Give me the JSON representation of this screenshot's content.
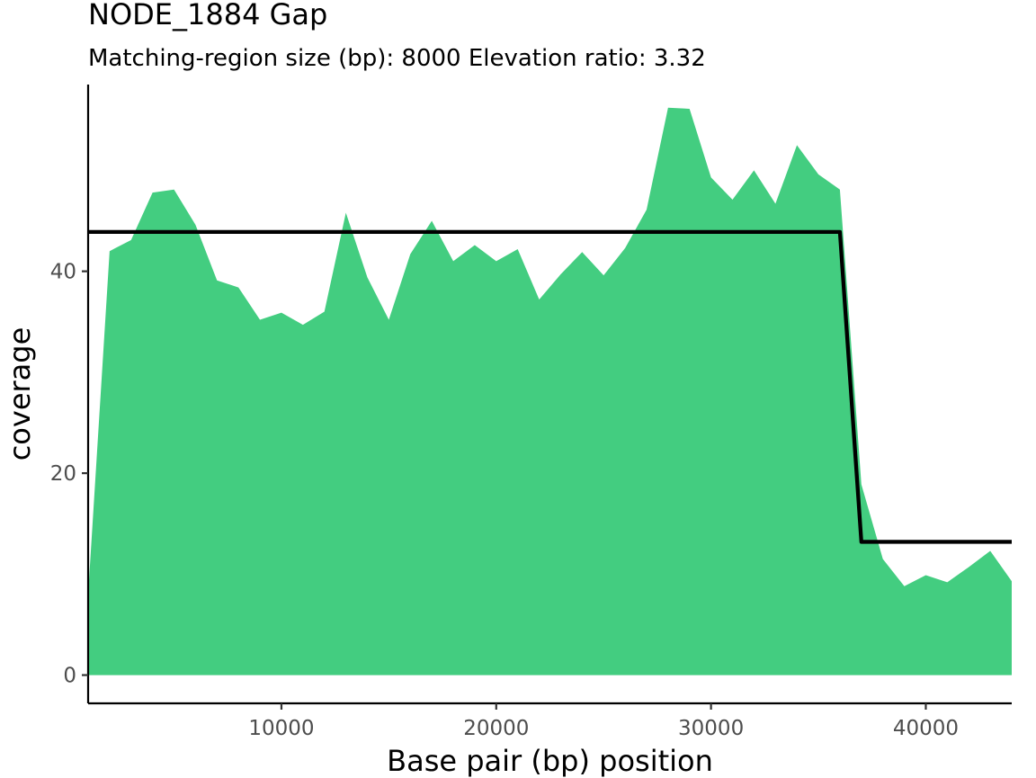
{
  "chart_data": {
    "type": "area",
    "title": "NODE_1884 Gap",
    "subtitle": "Matching-region size (bp): 8000 Elevation ratio: 3.32",
    "xlabel": "Base pair (bp) position",
    "ylabel": "coverage",
    "xlim": [
      1000,
      44000
    ],
    "ylim": [
      -2.8,
      58.5
    ],
    "x_ticks": [
      10000,
      20000,
      30000,
      40000
    ],
    "x_tick_labels": [
      "10000",
      "20000",
      "30000",
      "40000"
    ],
    "y_ticks": [
      0,
      20,
      40
    ],
    "y_tick_labels": [
      "0",
      "20",
      "40"
    ],
    "grid": false,
    "fill_color": "#43CD80",
    "line_color": "#000000",
    "coverage": {
      "x": [
        1000,
        2000,
        3000,
        4000,
        5000,
        6000,
        7000,
        8000,
        9000,
        10000,
        11000,
        12000,
        13000,
        14000,
        15000,
        16000,
        17000,
        18000,
        19000,
        20000,
        21000,
        22000,
        23000,
        24000,
        25000,
        26000,
        27000,
        28000,
        29000,
        30000,
        31000,
        32000,
        33000,
        34000,
        35000,
        36000,
        37000,
        38000,
        39000,
        40000,
        41000,
        42000,
        43000,
        44000
      ],
      "y": [
        8.0,
        42.0,
        43.1,
        47.8,
        48.1,
        44.6,
        39.1,
        38.4,
        35.2,
        35.9,
        34.7,
        36.0,
        45.8,
        39.4,
        35.2,
        41.7,
        45.0,
        41.0,
        42.6,
        41.0,
        42.2,
        37.2,
        39.7,
        41.9,
        39.6,
        42.3,
        46.1,
        56.2,
        56.1,
        49.3,
        47.1,
        50.0,
        46.7,
        52.5,
        49.6,
        48.1,
        18.9,
        11.5,
        8.8,
        9.9,
        9.2,
        10.7,
        12.3,
        9.3
      ]
    },
    "step_line": {
      "x": [
        1000,
        36000,
        37000,
        44000
      ],
      "y": [
        43.9,
        43.9,
        13.2,
        13.2
      ]
    }
  }
}
